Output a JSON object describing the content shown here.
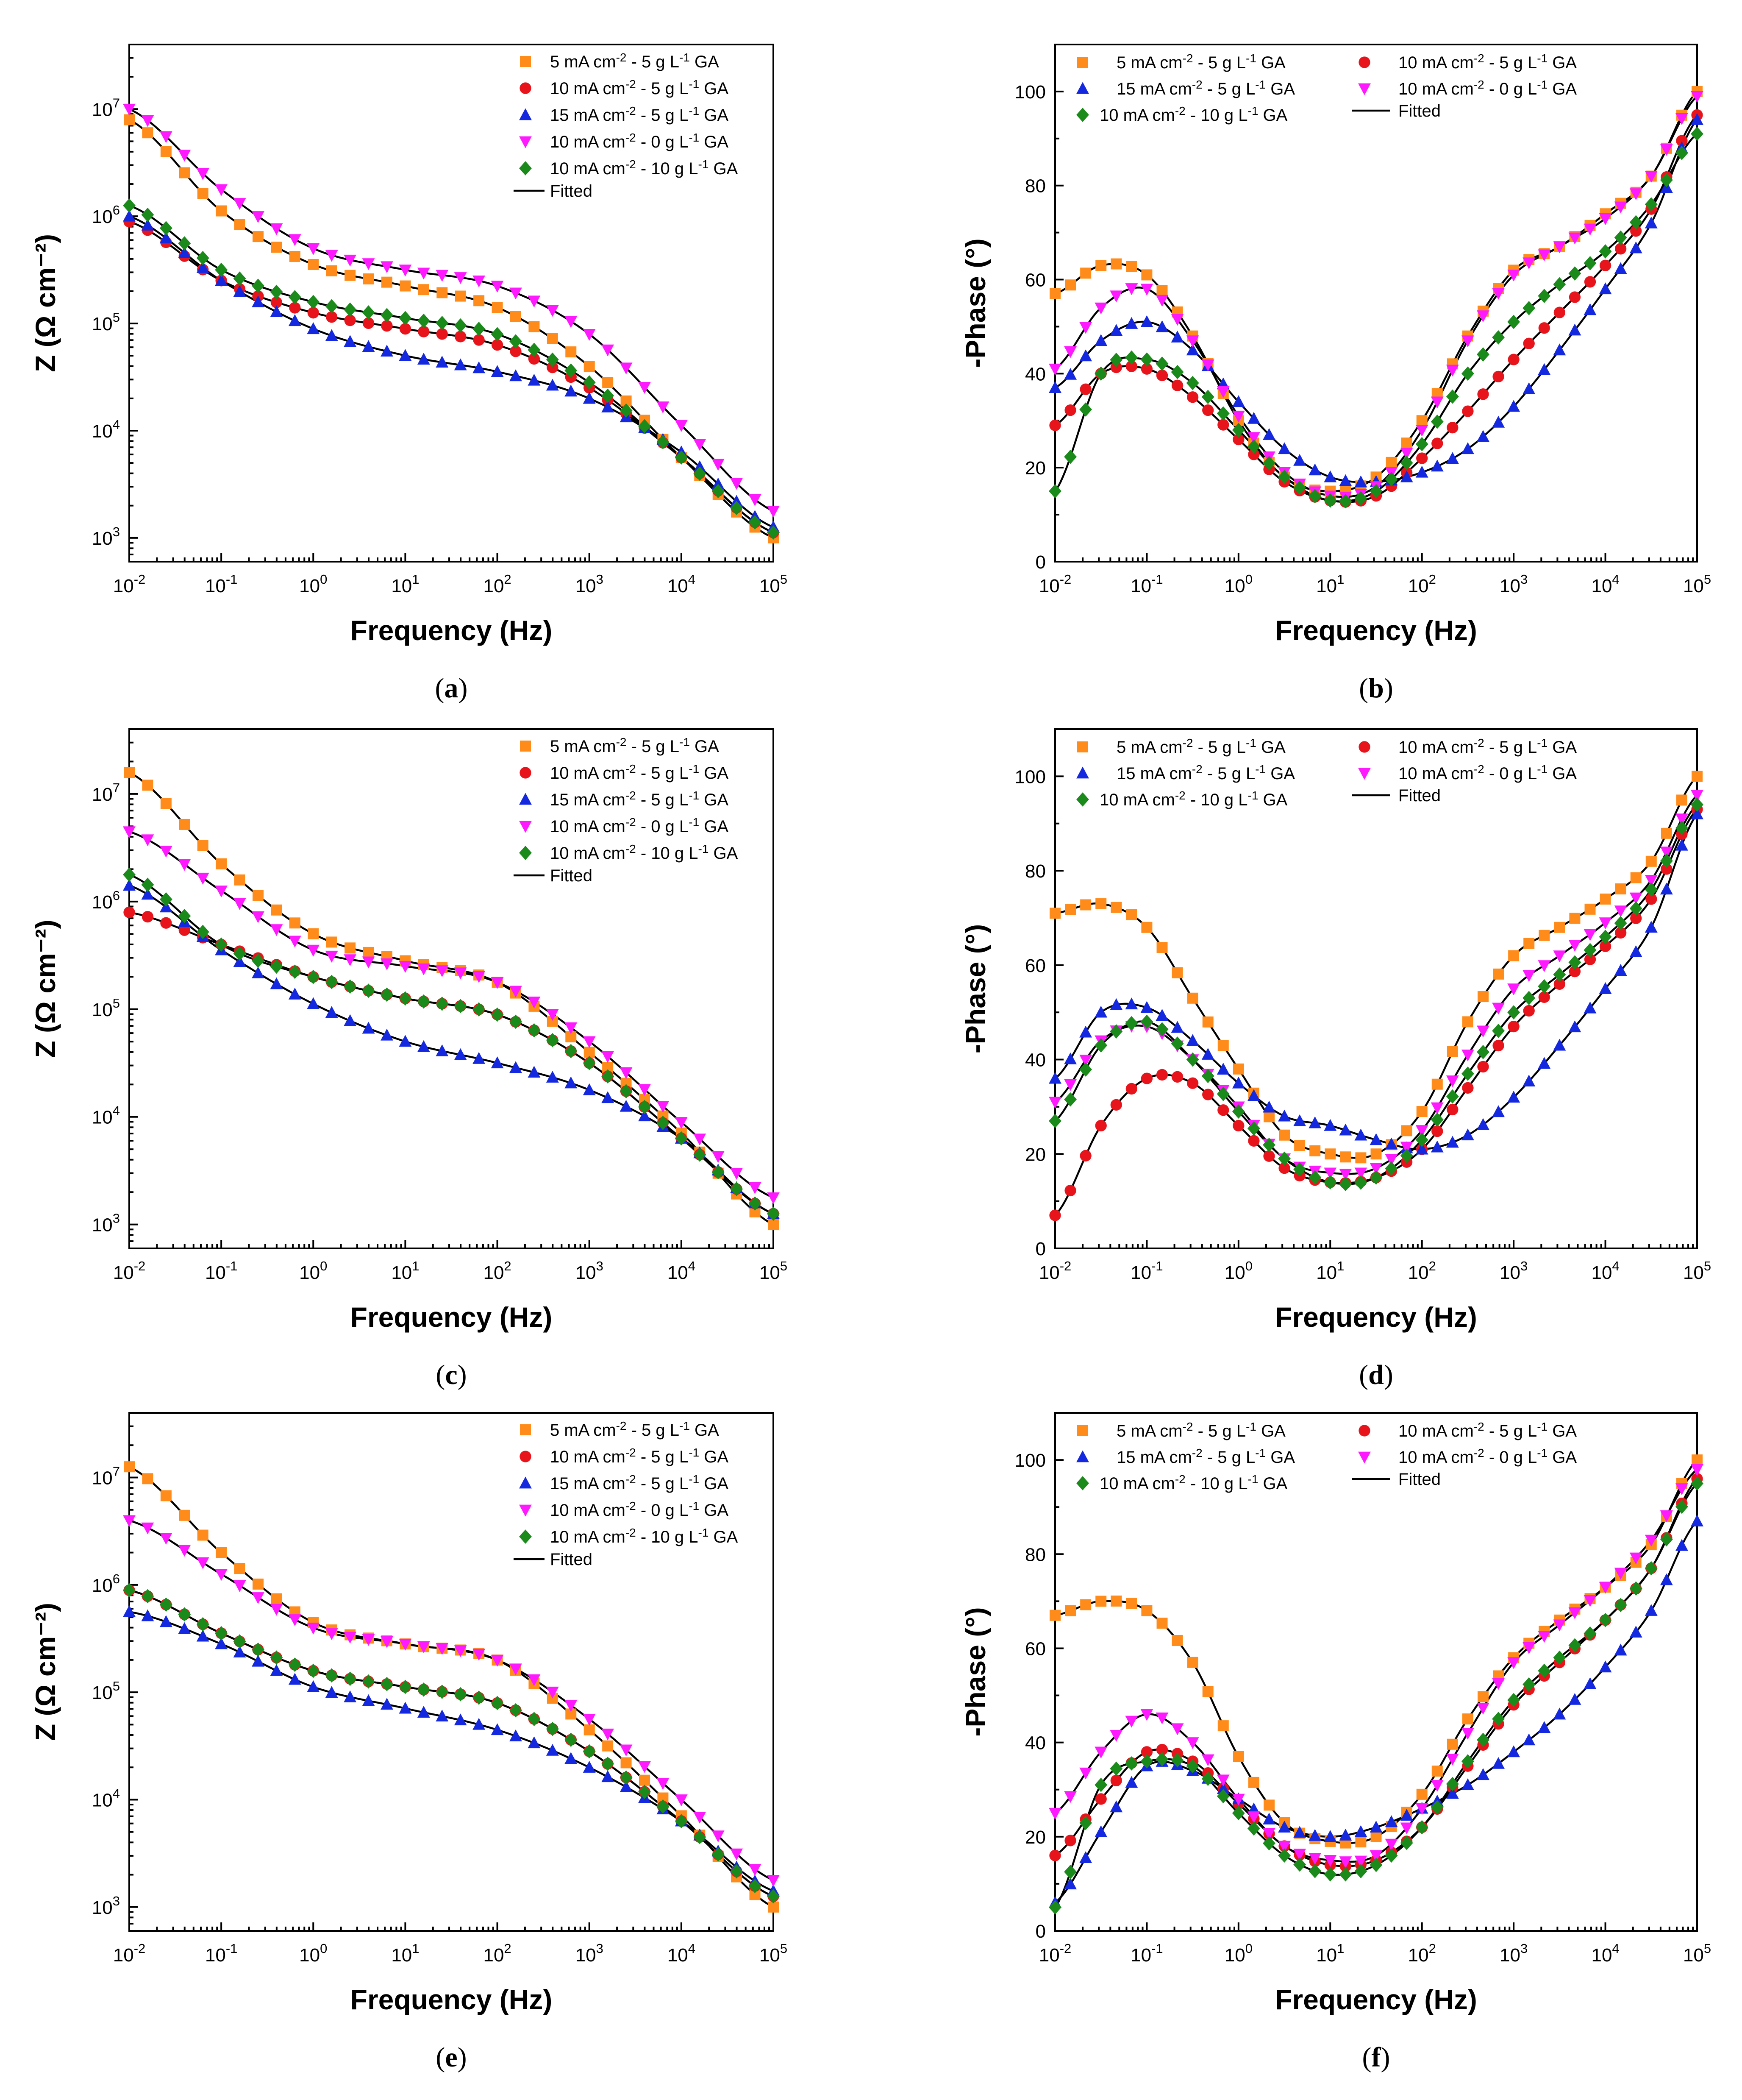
{
  "figure": {
    "colors": {
      "orange": "#ff8c1a",
      "red": "#e8141c",
      "blue": "#1428e0",
      "magenta": "#ff19ff",
      "green": "#1a8a1a",
      "fit": "#000000"
    },
    "series_meta": [
      {
        "key": "s5",
        "cd": "5",
        "ga": "5",
        "marker": "square",
        "color": "orange"
      },
      {
        "key": "s10",
        "cd": "10",
        "ga": "5",
        "marker": "circle",
        "color": "red"
      },
      {
        "key": "s15",
        "cd": "15",
        "ga": "5",
        "marker": "triangle",
        "color": "blue"
      },
      {
        "key": "s10_0",
        "cd": "10",
        "ga": "0",
        "marker": "triangle-down",
        "color": "magenta"
      },
      {
        "key": "s10_10",
        "cd": "10",
        "ga": "10",
        "marker": "diamond",
        "color": "green"
      }
    ],
    "legend_parts": {
      "unit_cd": "mA cm",
      "dash": "-",
      "unit_ga": "g L",
      "suffix": "GA",
      "sup_cd": "-2",
      "sup_ga": "-1",
      "fitted": "Fitted"
    },
    "bode_xlabel": "Frequency (Hz)",
    "bode_ylabel_mod": "Z (Ω cm⁻²)",
    "bode_ylabel_phase": "-Phase (°)",
    "x_tick_exponents": [
      "-2",
      "-1",
      "0",
      "1",
      "2",
      "3",
      "4",
      "5"
    ],
    "x_tick_base": "10",
    "mod_tick_exponents": [
      "3",
      "4",
      "5",
      "6",
      "7"
    ],
    "phase_ticks": [
      "0",
      "20",
      "40",
      "60",
      "80",
      "100"
    ]
  },
  "chart_data": [
    {
      "panel": "a",
      "type": "scatter",
      "quantity": "impedance modulus",
      "title": "",
      "xlabel": "Frequency (Hz)",
      "ylabel": "Z (Ω cm⁻²)",
      "xscale": "log",
      "yscale": "log",
      "xlim": [
        0.01,
        100000
      ],
      "ylim": [
        600,
        40000000
      ],
      "legend_position": "top-right",
      "series": [
        {
          "key": "s5",
          "name": "5 mA cm-2 - 5 g L-1 GA",
          "logf": [
            -2,
            -1,
            0,
            1,
            2,
            3,
            4,
            5
          ],
          "logy": [
            6.9,
            6.05,
            5.55,
            5.35,
            5.15,
            4.6,
            3.75,
            3.0
          ]
        },
        {
          "key": "s10",
          "name": "10 mA cm-2 - 5 g L-1 GA",
          "logf": [
            -2,
            -1,
            0,
            1,
            2,
            3,
            4,
            5
          ],
          "logy": [
            5.95,
            5.4,
            5.1,
            4.95,
            4.8,
            4.4,
            3.75,
            3.05
          ]
        },
        {
          "key": "s15",
          "name": "15 mA cm-2 - 5 g L-1 GA",
          "logf": [
            -2,
            -1,
            0,
            1,
            2,
            3,
            4,
            5
          ],
          "logy": [
            6.0,
            5.4,
            4.95,
            4.7,
            4.55,
            4.3,
            3.8,
            3.1
          ]
        },
        {
          "key": "s10_0",
          "name": "10 mA cm-2 - 0 g L-1 GA",
          "logf": [
            -2,
            -1,
            0,
            1,
            2,
            3,
            4,
            5
          ],
          "logy": [
            7.0,
            6.25,
            5.7,
            5.5,
            5.35,
            4.9,
            4.05,
            3.25
          ]
        },
        {
          "key": "s10_10",
          "name": "10 mA cm-2 -10 g L-1 GA",
          "logf": [
            -2,
            -1,
            0,
            1,
            2,
            3,
            4,
            5
          ],
          "logy": [
            6.1,
            5.5,
            5.2,
            5.05,
            4.9,
            4.45,
            3.75,
            3.05
          ]
        }
      ]
    },
    {
      "panel": "b",
      "type": "scatter",
      "quantity": "phase angle",
      "title": "",
      "xlabel": "Frequency (Hz)",
      "ylabel": "-Phase (°)",
      "xscale": "log",
      "yscale": "linear",
      "xlim": [
        0.01,
        100000
      ],
      "ylim": [
        0,
        110
      ],
      "legend_position": "top",
      "series": [
        {
          "key": "s5",
          "name": "5 mA cm-2 - 5 g L-1 GA",
          "logf": [
            -2,
            -1.5,
            -1,
            -0.5,
            0,
            0.5,
            1,
            1.5,
            2,
            2.5,
            3,
            3.5,
            4,
            4.5,
            5
          ],
          "y": [
            57,
            63,
            61,
            48,
            30,
            18,
            15,
            18,
            30,
            48,
            62,
            67,
            74,
            82,
            100
          ]
        },
        {
          "key": "s10",
          "name": "10 mA cm-2 - 5 g L-1 GA",
          "logf": [
            -2,
            -1.5,
            -1,
            -0.5,
            0,
            0.5,
            1,
            1.5,
            2,
            2.5,
            3,
            3.5,
            4,
            4.5,
            5
          ],
          "y": [
            29,
            40,
            41,
            35,
            26,
            17,
            13,
            14,
            22,
            32,
            43,
            53,
            63,
            75,
            95
          ]
        },
        {
          "key": "s15",
          "name": "15 mA cm-2 - 5 g L-1 GA",
          "logf": [
            -2,
            -1.5,
            -1,
            -0.5,
            0,
            0.5,
            1,
            1.5,
            2,
            2.5,
            3,
            3.5,
            4,
            4.5,
            5
          ],
          "y": [
            37,
            47,
            51,
            45,
            34,
            24,
            18,
            17,
            19,
            24,
            33,
            45,
            58,
            72,
            94
          ]
        },
        {
          "key": "s10_0",
          "name": "10 mA cm-2 - 0 g L-1 GA",
          "logf": [
            -2,
            -1.5,
            -1,
            -0.5,
            0,
            0.5,
            1,
            1.5,
            2,
            2.5,
            3,
            3.5,
            4,
            4.5,
            5
          ],
          "y": [
            41,
            54,
            58,
            47,
            31,
            19,
            14,
            16,
            28,
            47,
            61,
            67,
            73,
            82,
            99
          ]
        },
        {
          "key": "s10_10",
          "name": "10 mA cm-2 -10 g L-1 GA",
          "logf": [
            -2,
            -1.5,
            -1,
            -0.5,
            0,
            0.5,
            1,
            1.5,
            2,
            2.5,
            3,
            3.5,
            4,
            4.5,
            5
          ],
          "y": [
            15,
            40,
            43,
            38,
            28,
            18,
            13,
            15,
            25,
            40,
            51,
            59,
            66,
            76,
            91
          ]
        }
      ]
    },
    {
      "panel": "c",
      "type": "scatter",
      "quantity": "impedance modulus",
      "title": "",
      "xlabel": "Frequency (Hz)",
      "ylabel": "Z (Ω cm⁻²)",
      "xscale": "log",
      "yscale": "log",
      "xlim": [
        0.01,
        100000
      ],
      "ylim": [
        600,
        40000000
      ],
      "legend_position": "top-right",
      "series": [
        {
          "key": "s5",
          "name": "5 mA cm-2 - 5 g L-1 GA",
          "logf": [
            -2,
            -1,
            0,
            1,
            2,
            3,
            4,
            5
          ],
          "logy": [
            7.2,
            6.35,
            5.7,
            5.45,
            5.25,
            4.6,
            3.85,
            3.0
          ]
        },
        {
          "key": "s10",
          "name": "10 mA cm-2 - 5 g L-1 GA",
          "logf": [
            -2,
            -1,
            0,
            1,
            2,
            3,
            4,
            5
          ],
          "logy": [
            5.9,
            5.6,
            5.3,
            5.1,
            4.95,
            4.5,
            3.8,
            3.1
          ]
        },
        {
          "key": "s15",
          "name": "15 mA cm-2 - 5 g L-1 GA",
          "logf": [
            -2,
            -1,
            0,
            1,
            2,
            3,
            4,
            5
          ],
          "logy": [
            6.15,
            5.55,
            5.05,
            4.7,
            4.5,
            4.25,
            3.8,
            3.1
          ]
        },
        {
          "key": "s10_0",
          "name": "10 mA cm-2 - 0 g L-1 GA",
          "logf": [
            -2,
            -1,
            0,
            1,
            2,
            3,
            4,
            5
          ],
          "logy": [
            6.65,
            6.1,
            5.55,
            5.4,
            5.25,
            4.7,
            3.95,
            3.25
          ]
        },
        {
          "key": "s10_10",
          "name": "10 mA cm-2 -10 g L-1 GA",
          "logf": [
            -2,
            -1,
            0,
            1,
            2,
            3,
            4,
            5
          ],
          "logy": [
            6.25,
            5.6,
            5.3,
            5.1,
            4.95,
            4.5,
            3.8,
            3.1
          ]
        }
      ]
    },
    {
      "panel": "d",
      "type": "scatter",
      "quantity": "phase angle",
      "title": "",
      "xlabel": "Frequency (Hz)",
      "ylabel": "-Phase (°)",
      "xscale": "log",
      "yscale": "linear",
      "xlim": [
        0.01,
        100000
      ],
      "ylim": [
        0,
        110
      ],
      "legend_position": "top",
      "series": [
        {
          "key": "s5",
          "name": "5 mA cm-2 - 5 g L-1 GA",
          "logf": [
            -2,
            -1.5,
            -1,
            -0.5,
            0,
            0.5,
            1,
            1.5,
            2,
            2.5,
            3,
            3.5,
            4,
            4.5,
            5
          ],
          "y": [
            71,
            73,
            68,
            53,
            38,
            24,
            20,
            20,
            29,
            48,
            62,
            68,
            74,
            82,
            100
          ]
        },
        {
          "key": "s10",
          "name": "10 mA cm-2 - 5 g L-1 GA",
          "logf": [
            -2,
            -1.5,
            -1,
            -0.5,
            0,
            0.5,
            1,
            1.5,
            2,
            2.5,
            3,
            3.5,
            4,
            4.5,
            5
          ],
          "y": [
            7,
            26,
            36,
            35,
            26,
            17,
            14,
            15,
            21,
            34,
            47,
            56,
            64,
            74,
            93
          ]
        },
        {
          "key": "s15",
          "name": "15 mA cm-2 - 5 g L-1 GA",
          "logf": [
            -2,
            -1.5,
            -1,
            -0.5,
            0,
            0.5,
            1,
            1.5,
            2,
            2.5,
            3,
            3.5,
            4,
            4.5,
            5
          ],
          "y": [
            36,
            50,
            51,
            44,
            35,
            28,
            26,
            23,
            21,
            24,
            32,
            43,
            55,
            68,
            92
          ]
        },
        {
          "key": "s10_0",
          "name": "10 mA cm-2 - 0 g L-1 GA",
          "logf": [
            -2,
            -1.5,
            -1,
            -0.5,
            0,
            0.5,
            1,
            1.5,
            2,
            2.5,
            3,
            3.5,
            4,
            4.5,
            5
          ],
          "y": [
            31,
            44,
            47,
            40,
            30,
            19,
            16,
            17,
            25,
            41,
            55,
            62,
            69,
            78,
            96
          ]
        },
        {
          "key": "s10_10",
          "name": "10 mA cm-2 -10 g L-1 GA",
          "logf": [
            -2,
            -1.5,
            -1,
            -0.5,
            0,
            0.5,
            1,
            1.5,
            2,
            2.5,
            3,
            3.5,
            4,
            4.5,
            5
          ],
          "y": [
            27,
            43,
            48,
            40,
            29,
            19,
            14,
            15,
            23,
            37,
            50,
            58,
            66,
            76,
            94
          ]
        }
      ]
    },
    {
      "panel": "e",
      "type": "scatter",
      "quantity": "impedance modulus",
      "title": "",
      "xlabel": "Frequency (Hz)",
      "ylabel": "Z (Ω cm⁻²)",
      "xscale": "log",
      "yscale": "log",
      "xlim": [
        0.01,
        100000
      ],
      "ylim": [
        600,
        40000000
      ],
      "legend_position": "top-right",
      "series": [
        {
          "key": "s5",
          "name": "5 mA cm-2 - 5 g L-1 GA",
          "logf": [
            -2,
            -1,
            0,
            1,
            2,
            3,
            4,
            5
          ],
          "logy": [
            7.1,
            6.3,
            5.65,
            5.45,
            5.3,
            4.65,
            3.85,
            3.0
          ]
        },
        {
          "key": "s10",
          "name": "10 mA cm-2 - 5 g L-1 GA",
          "logf": [
            -2,
            -1,
            0,
            1,
            2,
            3,
            4,
            5
          ],
          "logy": [
            5.95,
            5.55,
            5.2,
            5.05,
            4.9,
            4.45,
            3.8,
            3.1
          ]
        },
        {
          "key": "s15",
          "name": "15 mA cm-2 - 5 g L-1 GA",
          "logf": [
            -2,
            -1,
            0,
            1,
            2,
            3,
            4,
            5
          ],
          "logy": [
            5.75,
            5.45,
            5.05,
            4.85,
            4.65,
            4.3,
            3.8,
            3.15
          ]
        },
        {
          "key": "s10_0",
          "name": "10 mA cm-2 - 0 g L-1 GA",
          "logf": [
            -2,
            -1,
            0,
            1,
            2,
            3,
            4,
            5
          ],
          "logy": [
            6.6,
            6.1,
            5.6,
            5.45,
            5.3,
            4.75,
            4.0,
            3.25
          ]
        },
        {
          "key": "s10_10",
          "name": "10 mA cm-2 -10 g L-1 GA",
          "logf": [
            -2,
            -1,
            0,
            1,
            2,
            3,
            4,
            5
          ],
          "logy": [
            5.95,
            5.55,
            5.2,
            5.05,
            4.9,
            4.45,
            3.8,
            3.1
          ]
        }
      ]
    },
    {
      "panel": "f",
      "type": "scatter",
      "quantity": "phase angle",
      "title": "",
      "xlabel": "Frequency (Hz)",
      "ylabel": "-Phase (°)",
      "xscale": "log",
      "yscale": "linear",
      "xlim": [
        0.01,
        100000
      ],
      "ylim": [
        0,
        110
      ],
      "legend_position": "top",
      "series": [
        {
          "key": "s5",
          "name": "5 mA cm-2 - 5 g L-1 GA",
          "logf": [
            -2,
            -1.5,
            -1,
            -0.5,
            0,
            0.5,
            1,
            1.5,
            2,
            2.5,
            3,
            3.5,
            4,
            4.5,
            5
          ],
          "y": [
            67,
            70,
            68,
            57,
            37,
            23,
            19,
            20,
            29,
            45,
            58,
            66,
            73,
            82,
            100
          ]
        },
        {
          "key": "s10",
          "name": "10 mA cm-2 - 5 g L-1 GA",
          "logf": [
            -2,
            -1.5,
            -1,
            -0.5,
            0,
            0.5,
            1,
            1.5,
            2,
            2.5,
            3,
            3.5,
            4,
            4.5,
            5
          ],
          "y": [
            16,
            28,
            38,
            36,
            27,
            18,
            14,
            15,
            22,
            35,
            48,
            57,
            66,
            77,
            96
          ]
        },
        {
          "key": "s15",
          "name": "15 mA cm-2 - 5 g L-1 GA",
          "logf": [
            -2,
            -1.5,
            -1,
            -0.5,
            0,
            0.5,
            1,
            1.5,
            2,
            2.5,
            3,
            3.5,
            4,
            4.5,
            5
          ],
          "y": [
            6,
            21,
            35,
            34,
            28,
            22,
            20,
            22,
            26,
            31,
            38,
            46,
            56,
            68,
            87
          ]
        },
        {
          "key": "s10_0",
          "name": "10 mA cm-2 - 0 g L-1 GA",
          "logf": [
            -2,
            -1.5,
            -1,
            -0.5,
            0,
            0.5,
            1,
            1.5,
            2,
            2.5,
            3,
            3.5,
            4,
            4.5,
            5
          ],
          "y": [
            25,
            38,
            46,
            40,
            28,
            18,
            15,
            16,
            26,
            42,
            57,
            65,
            73,
            83,
            98
          ]
        },
        {
          "key": "s10_10",
          "name": "10 mA cm-2 -10 g L-1 GA",
          "logf": [
            -2,
            -1.5,
            -1,
            -0.5,
            0,
            0.5,
            1,
            1.5,
            2,
            2.5,
            3,
            3.5,
            4,
            4.5,
            5
          ],
          "y": [
            5,
            31,
            36,
            35,
            25,
            16,
            12,
            14,
            22,
            36,
            49,
            58,
            66,
            77,
            95
          ]
        }
      ]
    }
  ]
}
